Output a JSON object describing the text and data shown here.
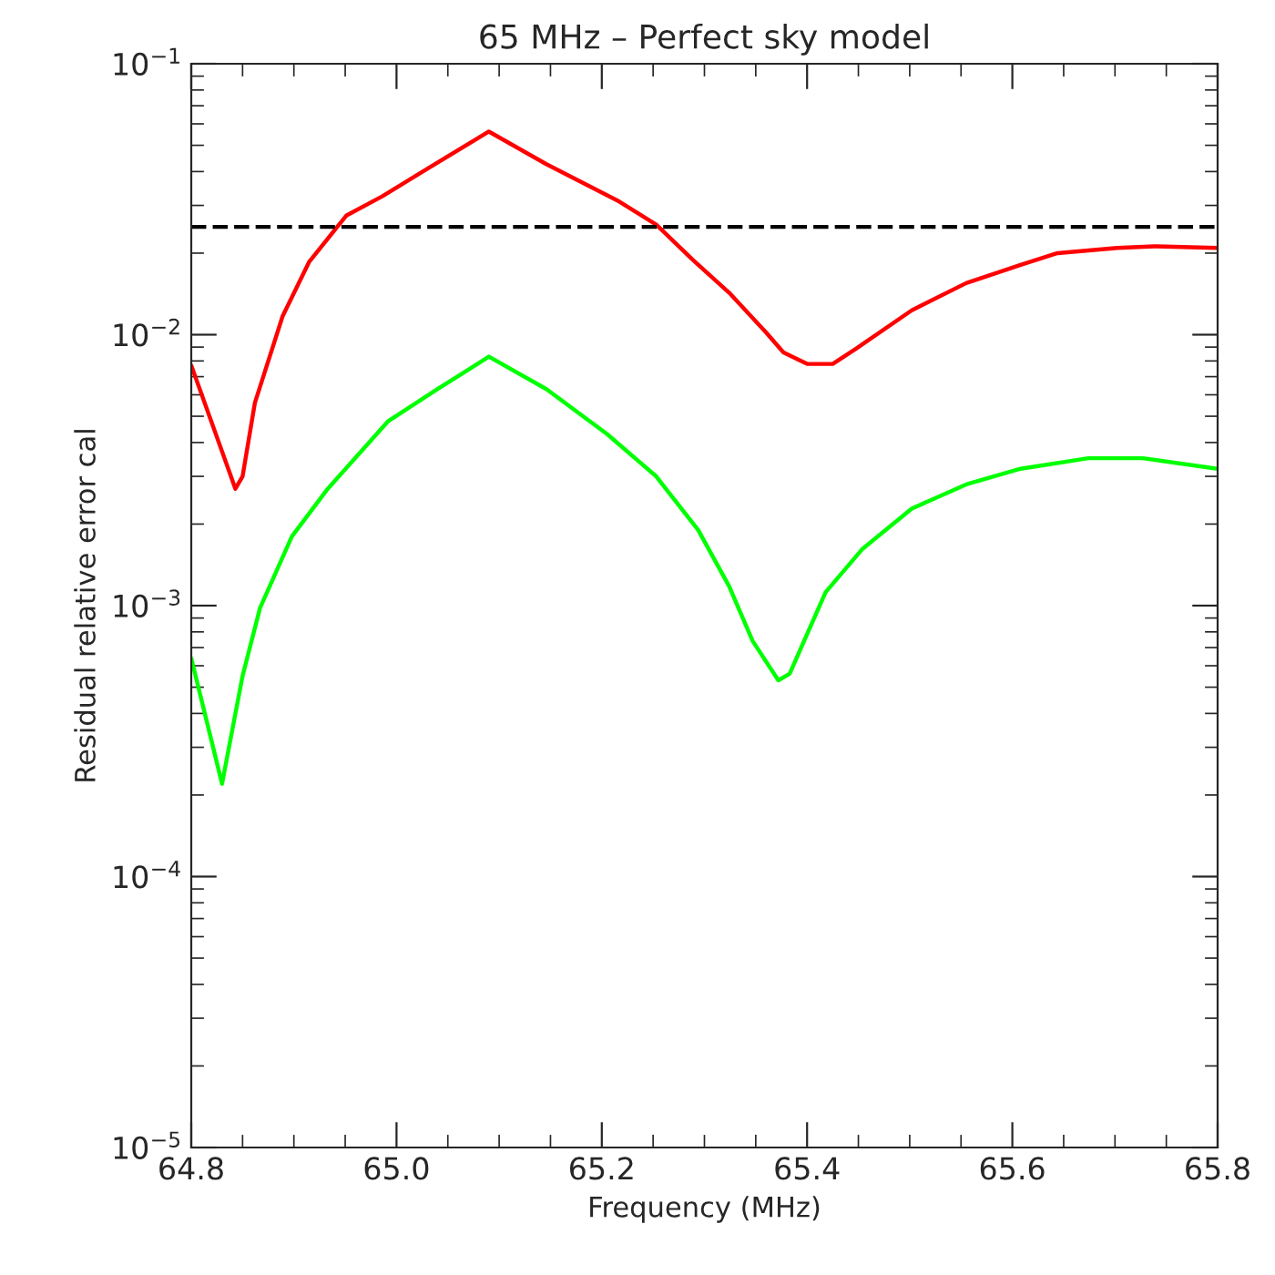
{
  "chart_data": {
    "type": "line",
    "title": "65 MHz – Perfect sky model",
    "xlabel": "Frequency (MHz)",
    "ylabel": "Residual relative error cal",
    "log": "y",
    "xlim": [
      64.8,
      65.8
    ],
    "ylim": [
      1e-05,
      0.1
    ],
    "xticks": [
      {
        "value": 64.8,
        "label": "64.8"
      },
      {
        "value": 65.0,
        "label": "65.0"
      },
      {
        "value": 65.2,
        "label": "65.2"
      },
      {
        "value": 65.4,
        "label": "65.4"
      },
      {
        "value": 65.6,
        "label": "65.6"
      },
      {
        "value": 65.8,
        "label": "65.8"
      }
    ],
    "yticks": [
      {
        "value": 1e-05,
        "label": "10$^{−5}$"
      },
      {
        "value": 0.0001,
        "label": "10$^{−4}$"
      },
      {
        "value": 0.001,
        "label": "10$^{−3}$"
      },
      {
        "value": 0.01,
        "label": "10$^{−2}$"
      },
      {
        "value": 0.1,
        "label": "10$^{−1}$"
      }
    ],
    "grid": false,
    "legend": false,
    "line_style": "solid",
    "marker": "none",
    "ref_lines": [
      {
        "axis": "y",
        "value": 0.025,
        "color": "#000000",
        "line_style": "dashed"
      }
    ],
    "series": [
      {
        "color": "#ff0000",
        "x": [
          64.8,
          64.843,
          64.85,
          64.862,
          64.889,
          64.915,
          64.951,
          64.986,
          65.031,
          65.09,
          65.146,
          65.217,
          65.253,
          65.288,
          65.324,
          65.36,
          65.377,
          65.4,
          65.425,
          65.448,
          65.502,
          65.555,
          65.608,
          65.644,
          65.702,
          65.738,
          65.8
        ],
        "values": [
          0.0077,
          0.0027,
          0.003,
          0.0056,
          0.0117,
          0.0186,
          0.0275,
          0.0324,
          0.0412,
          0.0562,
          0.0426,
          0.031,
          0.0255,
          0.019,
          0.0143,
          0.0102,
          0.0086,
          0.0078,
          0.0078,
          0.0089,
          0.0123,
          0.0155,
          0.0181,
          0.02,
          0.0209,
          0.0212,
          0.0209
        ]
      },
      {
        "color": "#00ff00",
        "x": [
          64.8,
          64.83,
          64.85,
          64.867,
          64.898,
          64.933,
          64.992,
          65.04,
          65.09,
          65.146,
          65.205,
          65.253,
          65.294,
          65.324,
          65.347,
          65.372,
          65.383,
          65.418,
          65.454,
          65.502,
          65.555,
          65.608,
          65.674,
          65.727,
          65.8
        ],
        "values": [
          0.00064,
          0.00022,
          0.00055,
          0.00098,
          0.0018,
          0.0027,
          0.0048,
          0.0063,
          0.0083,
          0.0063,
          0.0043,
          0.003,
          0.0019,
          0.00118,
          0.00074,
          0.00053,
          0.00056,
          0.00112,
          0.00162,
          0.00228,
          0.0028,
          0.0032,
          0.0035,
          0.0035,
          0.0032
        ]
      }
    ]
  }
}
